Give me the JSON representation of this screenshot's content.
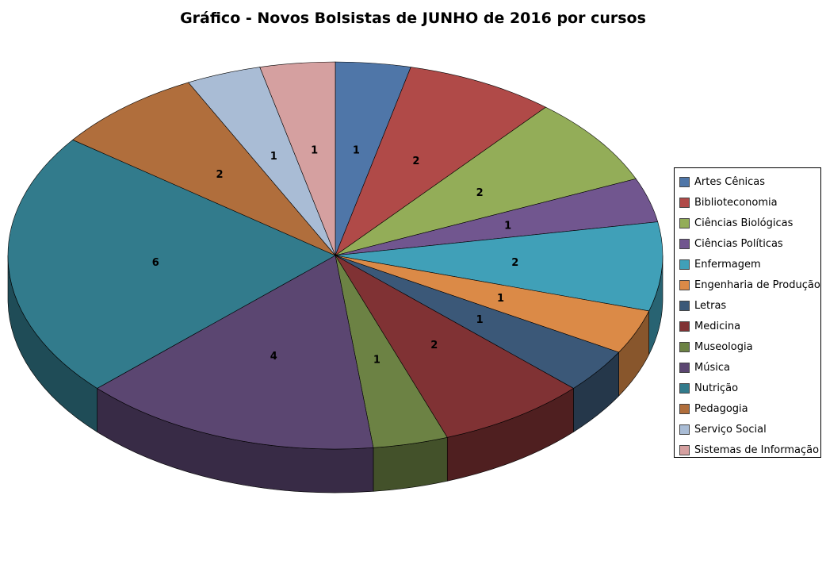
{
  "chart_data": {
    "type": "pie",
    "style": "3d",
    "title": "Gráfico - Novos Bolsistas de JUNHO de 2016 por cursos",
    "legend_position": "right",
    "data_labels": true,
    "categories": [
      "Artes Cênicas",
      "Biblioteconomia",
      "Ciências Biológicas",
      "Ciências Políticas",
      "Enfermagem",
      "Engenharia de Produção",
      "Letras",
      "Medicina",
      "Museologia",
      "Música",
      "Nutrição",
      "Pedagogia",
      "Serviço Social",
      "Sistemas de Informação"
    ],
    "values": [
      1,
      2,
      2,
      1,
      2,
      1,
      1,
      2,
      1,
      4,
      6,
      2,
      1,
      1
    ],
    "colors": [
      "#4F76A8",
      "#B04A48",
      "#93AD58",
      "#71568F",
      "#40A0B8",
      "#DB8A47",
      "#3B5878",
      "#803234",
      "#6C8244",
      "#5B4671",
      "#327B8C",
      "#B06E3C",
      "#A9BCD5",
      "#D5A0A0"
    ]
  }
}
